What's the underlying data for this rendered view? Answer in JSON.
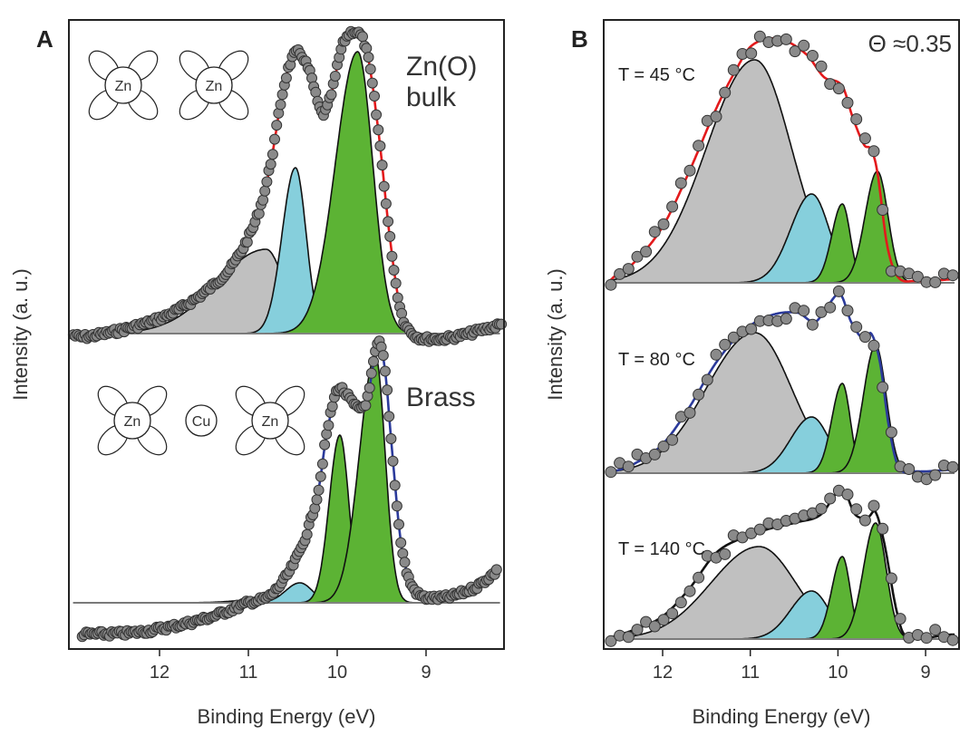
{
  "chart_data": [
    {
      "panel": "A",
      "type": "line",
      "xlabel": "Binding Energy (eV)",
      "ylabel": "Intensity (a. u.)",
      "xlim": [
        13.02,
        8.12
      ],
      "x_reversed": true,
      "xticks": [
        "12",
        "11",
        "10",
        "9"
      ],
      "grid": false,
      "point_spacing_eV": 0.022,
      "spectra": [
        {
          "label_lines": [
            "Zn(O)",
            "bulk"
          ],
          "inset_atoms": [
            "Zn",
            "Zn"
          ],
          "fit_color": "#e31a1c",
          "component_baseline": 0,
          "fit": [
            [
              13.0,
              0.0
            ],
            [
              12.88,
              -0.04
            ],
            [
              12.27,
              0.08
            ],
            [
              11.76,
              0.28
            ],
            [
              11.24,
              0.68
            ],
            [
              10.99,
              1.08
            ],
            [
              10.84,
              1.48
            ],
            [
              10.73,
              1.98
            ],
            [
              10.63,
              2.58
            ],
            [
              10.53,
              2.98
            ],
            [
              10.43,
              3.1
            ],
            [
              10.31,
              2.88
            ],
            [
              10.17,
              2.43
            ],
            [
              10.07,
              2.63
            ],
            [
              9.94,
              3.18
            ],
            [
              9.79,
              3.33
            ],
            [
              9.66,
              3.08
            ],
            [
              9.53,
              2.18
            ],
            [
              9.41,
              1.08
            ],
            [
              9.29,
              0.28
            ],
            [
              9.15,
              0.0
            ],
            [
              8.9,
              -0.06
            ],
            [
              8.6,
              -0.02
            ],
            [
              8.3,
              0.06
            ],
            [
              8.15,
              0.1
            ]
          ],
          "components": [
            {
              "kind": "gray",
              "center": 10.8,
              "amplitude": 0.93,
              "sigma_left": 0.55,
              "sigma_right": 0.2
            },
            {
              "kind": "blue",
              "center": 10.47,
              "amplitude": 1.83,
              "sigma_left": 0.15,
              "sigma_right": 0.12
            },
            {
              "kind": "green",
              "center": 9.77,
              "amplitude": 3.11,
              "sigma_left": 0.25,
              "sigma_right": 0.17
            }
          ]
        },
        {
          "label_lines": [
            "Brass"
          ],
          "inset_atoms": [
            "Zn",
            "Cu",
            "Zn"
          ],
          "fit_color": "#2b3a9b",
          "component_baseline": 0.35,
          "fit": [
            [
              12.9,
              0.0
            ],
            [
              12.3,
              0.02
            ],
            [
              11.8,
              0.1
            ],
            [
              11.4,
              0.2
            ],
            [
              11.0,
              0.35
            ],
            [
              10.73,
              0.45
            ],
            [
              10.43,
              0.9
            ],
            [
              10.22,
              1.55
            ],
            [
              10.12,
              2.2
            ],
            [
              10.0,
              2.7
            ],
            [
              9.9,
              2.65
            ],
            [
              9.77,
              2.5
            ],
            [
              9.66,
              2.6
            ],
            [
              9.59,
              3.0
            ],
            [
              9.53,
              3.22
            ],
            [
              9.46,
              2.9
            ],
            [
              9.38,
              2.0
            ],
            [
              9.28,
              1.0
            ],
            [
              9.15,
              0.52
            ],
            [
              8.9,
              0.4
            ],
            [
              8.49,
              0.5
            ],
            [
              8.2,
              0.7
            ]
          ],
          "components": [
            {
              "kind": "gray",
              "center": 10.5,
              "amplitude": 0.08,
              "sigma_left": 0.4,
              "sigma_right": 0.4
            },
            {
              "kind": "blue",
              "center": 10.42,
              "amplitude": 0.22,
              "sigma_left": 0.16,
              "sigma_right": 0.14
            },
            {
              "kind": "green",
              "center": 9.97,
              "amplitude": 1.85,
              "sigma_left": 0.12,
              "sigma_right": 0.1
            },
            {
              "kind": "green",
              "center": 9.57,
              "amplitude": 2.72,
              "sigma_left": 0.18,
              "sigma_right": 0.11
            }
          ]
        }
      ]
    },
    {
      "panel": "B",
      "type": "line",
      "xlabel": "Binding Energy (eV)",
      "ylabel": "Intensity (a. u.)",
      "xlim": [
        12.67,
        8.62
      ],
      "x_reversed": true,
      "xticks": [
        "12",
        "11",
        "10",
        "9"
      ],
      "grid": false,
      "annotation": "Θ ≈0.35",
      "point_spacing_eV": 0.1,
      "spectra": [
        {
          "label": "T = 45 °C",
          "fit_color": "#e31a1c",
          "component_baseline": 0,
          "fit": [
            [
              12.62,
              0.0
            ],
            [
              12.55,
              0.07
            ],
            [
              12.33,
              0.22
            ],
            [
              12.0,
              0.62
            ],
            [
              11.7,
              1.22
            ],
            [
              11.39,
              1.92
            ],
            [
              11.18,
              2.32
            ],
            [
              10.98,
              2.62
            ],
            [
              10.67,
              2.69
            ],
            [
              10.36,
              2.52
            ],
            [
              10.16,
              2.27
            ],
            [
              9.95,
              2.17
            ],
            [
              9.83,
              1.82
            ],
            [
              9.7,
              1.52
            ],
            [
              9.62,
              1.47
            ],
            [
              9.55,
              1.22
            ],
            [
              9.44,
              0.42
            ],
            [
              9.32,
              0.07
            ],
            [
              9.13,
              0.02
            ],
            [
              8.67,
              0.04
            ]
          ],
          "components": [
            {
              "kind": "gray",
              "center": 10.95,
              "amplitude": 2.46,
              "sigma_left": 0.55,
              "sigma_right": 0.42
            },
            {
              "kind": "blue",
              "center": 10.3,
              "amplitude": 0.98,
              "sigma_left": 0.24,
              "sigma_right": 0.2
            },
            {
              "kind": "green",
              "center": 9.95,
              "amplitude": 0.87,
              "sigma_left": 0.12,
              "sigma_right": 0.09
            },
            {
              "kind": "green",
              "center": 9.55,
              "amplitude": 1.23,
              "sigma_left": 0.14,
              "sigma_right": 0.12
            }
          ]
        },
        {
          "label": "T = 80 °C",
          "fit_color": "#2b3a9b",
          "component_baseline": 0,
          "fit": [
            [
              12.62,
              0.0
            ],
            [
              12.55,
              0.02
            ],
            [
              12.33,
              0.1
            ],
            [
              12.0,
              0.32
            ],
            [
              11.7,
              0.72
            ],
            [
              11.39,
              1.22
            ],
            [
              11.08,
              1.57
            ],
            [
              10.77,
              1.74
            ],
            [
              10.46,
              1.77
            ],
            [
              10.26,
              1.67
            ],
            [
              10.1,
              1.87
            ],
            [
              9.97,
              1.97
            ],
            [
              9.85,
              1.67
            ],
            [
              9.7,
              1.47
            ],
            [
              9.62,
              1.54
            ],
            [
              9.52,
              1.22
            ],
            [
              9.42,
              0.52
            ],
            [
              9.31,
              0.07
            ],
            [
              9.13,
              0.02
            ],
            [
              8.67,
              0.04
            ]
          ],
          "components": [
            {
              "kind": "gray",
              "center": 10.95,
              "amplitude": 1.55,
              "sigma_left": 0.55,
              "sigma_right": 0.42
            },
            {
              "kind": "blue",
              "center": 10.3,
              "amplitude": 0.62,
              "sigma_left": 0.24,
              "sigma_right": 0.2
            },
            {
              "kind": "green",
              "center": 9.95,
              "amplitude": 0.99,
              "sigma_left": 0.12,
              "sigma_right": 0.09
            },
            {
              "kind": "green",
              "center": 9.57,
              "amplitude": 1.41,
              "sigma_left": 0.14,
              "sigma_right": 0.12
            }
          ]
        },
        {
          "label": "T = 140 °C",
          "fit_color": "#111111",
          "component_baseline": 0,
          "fit": [
            [
              12.62,
              0.0
            ],
            [
              12.55,
              0.03
            ],
            [
              12.33,
              0.1
            ],
            [
              12.0,
              0.25
            ],
            [
              11.7,
              0.55
            ],
            [
              11.39,
              0.95
            ],
            [
              11.08,
              1.12
            ],
            [
              10.77,
              1.22
            ],
            [
              10.46,
              1.29
            ],
            [
              10.2,
              1.37
            ],
            [
              9.95,
              1.65
            ],
            [
              9.8,
              1.37
            ],
            [
              9.65,
              1.35
            ],
            [
              9.57,
              1.4
            ],
            [
              9.47,
              1.05
            ],
            [
              9.34,
              0.35
            ],
            [
              9.24,
              0.05
            ],
            [
              8.67,
              0.05
            ]
          ],
          "components": [
            {
              "kind": "gray",
              "center": 10.9,
              "amplitude": 1.02,
              "sigma_left": 0.55,
              "sigma_right": 0.42
            },
            {
              "kind": "blue",
              "center": 10.3,
              "amplitude": 0.53,
              "sigma_left": 0.24,
              "sigma_right": 0.2
            },
            {
              "kind": "green",
              "center": 9.95,
              "amplitude": 0.91,
              "sigma_left": 0.12,
              "sigma_right": 0.09
            },
            {
              "kind": "green",
              "center": 9.57,
              "amplitude": 1.28,
              "sigma_left": 0.14,
              "sigma_right": 0.12
            }
          ]
        }
      ]
    }
  ],
  "colors": {
    "gray": "#c0c0c0",
    "blue": "#86cfdc",
    "green": "#5cb334",
    "point": "#8a8a8a"
  }
}
